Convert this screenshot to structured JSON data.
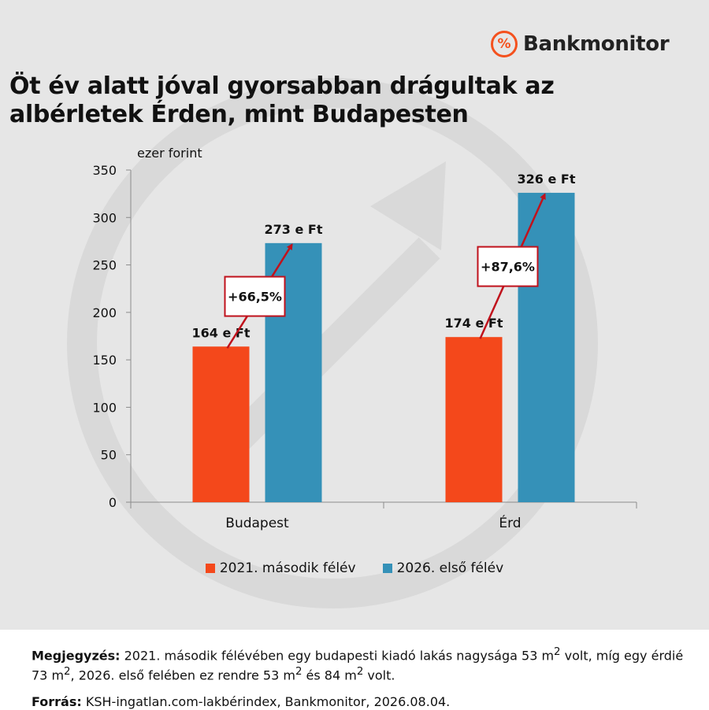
{
  "brand": {
    "name": "Bankmonitor",
    "icon": "percent-circle-icon",
    "color": "#f4511e"
  },
  "title": "Öt év alatt jóval gyorsabban drágultak az albérletek Érden, mint Budapesten",
  "chart_data": {
    "type": "bar",
    "categories": [
      "Budapest",
      "Érd"
    ],
    "series": [
      {
        "name": "2021. második félév",
        "values": [
          164,
          174
        ],
        "color": "#f4481b",
        "labels": [
          "164 e Ft",
          "174 e Ft"
        ]
      },
      {
        "name": "2026. első félév",
        "values": [
          273,
          326
        ],
        "color": "#3591b8",
        "labels": [
          "273 e Ft",
          "326 e Ft"
        ]
      }
    ],
    "changes": [
      "+66,5%",
      "+87,6%"
    ],
    "ylabel": "ezer forint",
    "ylim": [
      0,
      350
    ],
    "yticks": [
      0,
      50,
      100,
      150,
      200,
      250,
      300,
      350
    ],
    "grid": false,
    "legend": "bottom",
    "annotation_color": "#c0121c"
  },
  "note": {
    "label": "Megjegyzés:",
    "text_1": "2021. második félévében egy budapesti kiadó lakás nagysága 53 m",
    "text_2": " volt, míg egy érdié 73 m",
    "text_3": ", 2026. első felében ez rendre 53 m",
    "text_4": " és 84 m",
    "text_5": " volt.",
    "sup": "2"
  },
  "source": {
    "label": "Forrás:",
    "text": "KSH-ingatlan.com-lakbérindex, Bankmonitor, 2026.08.04."
  }
}
